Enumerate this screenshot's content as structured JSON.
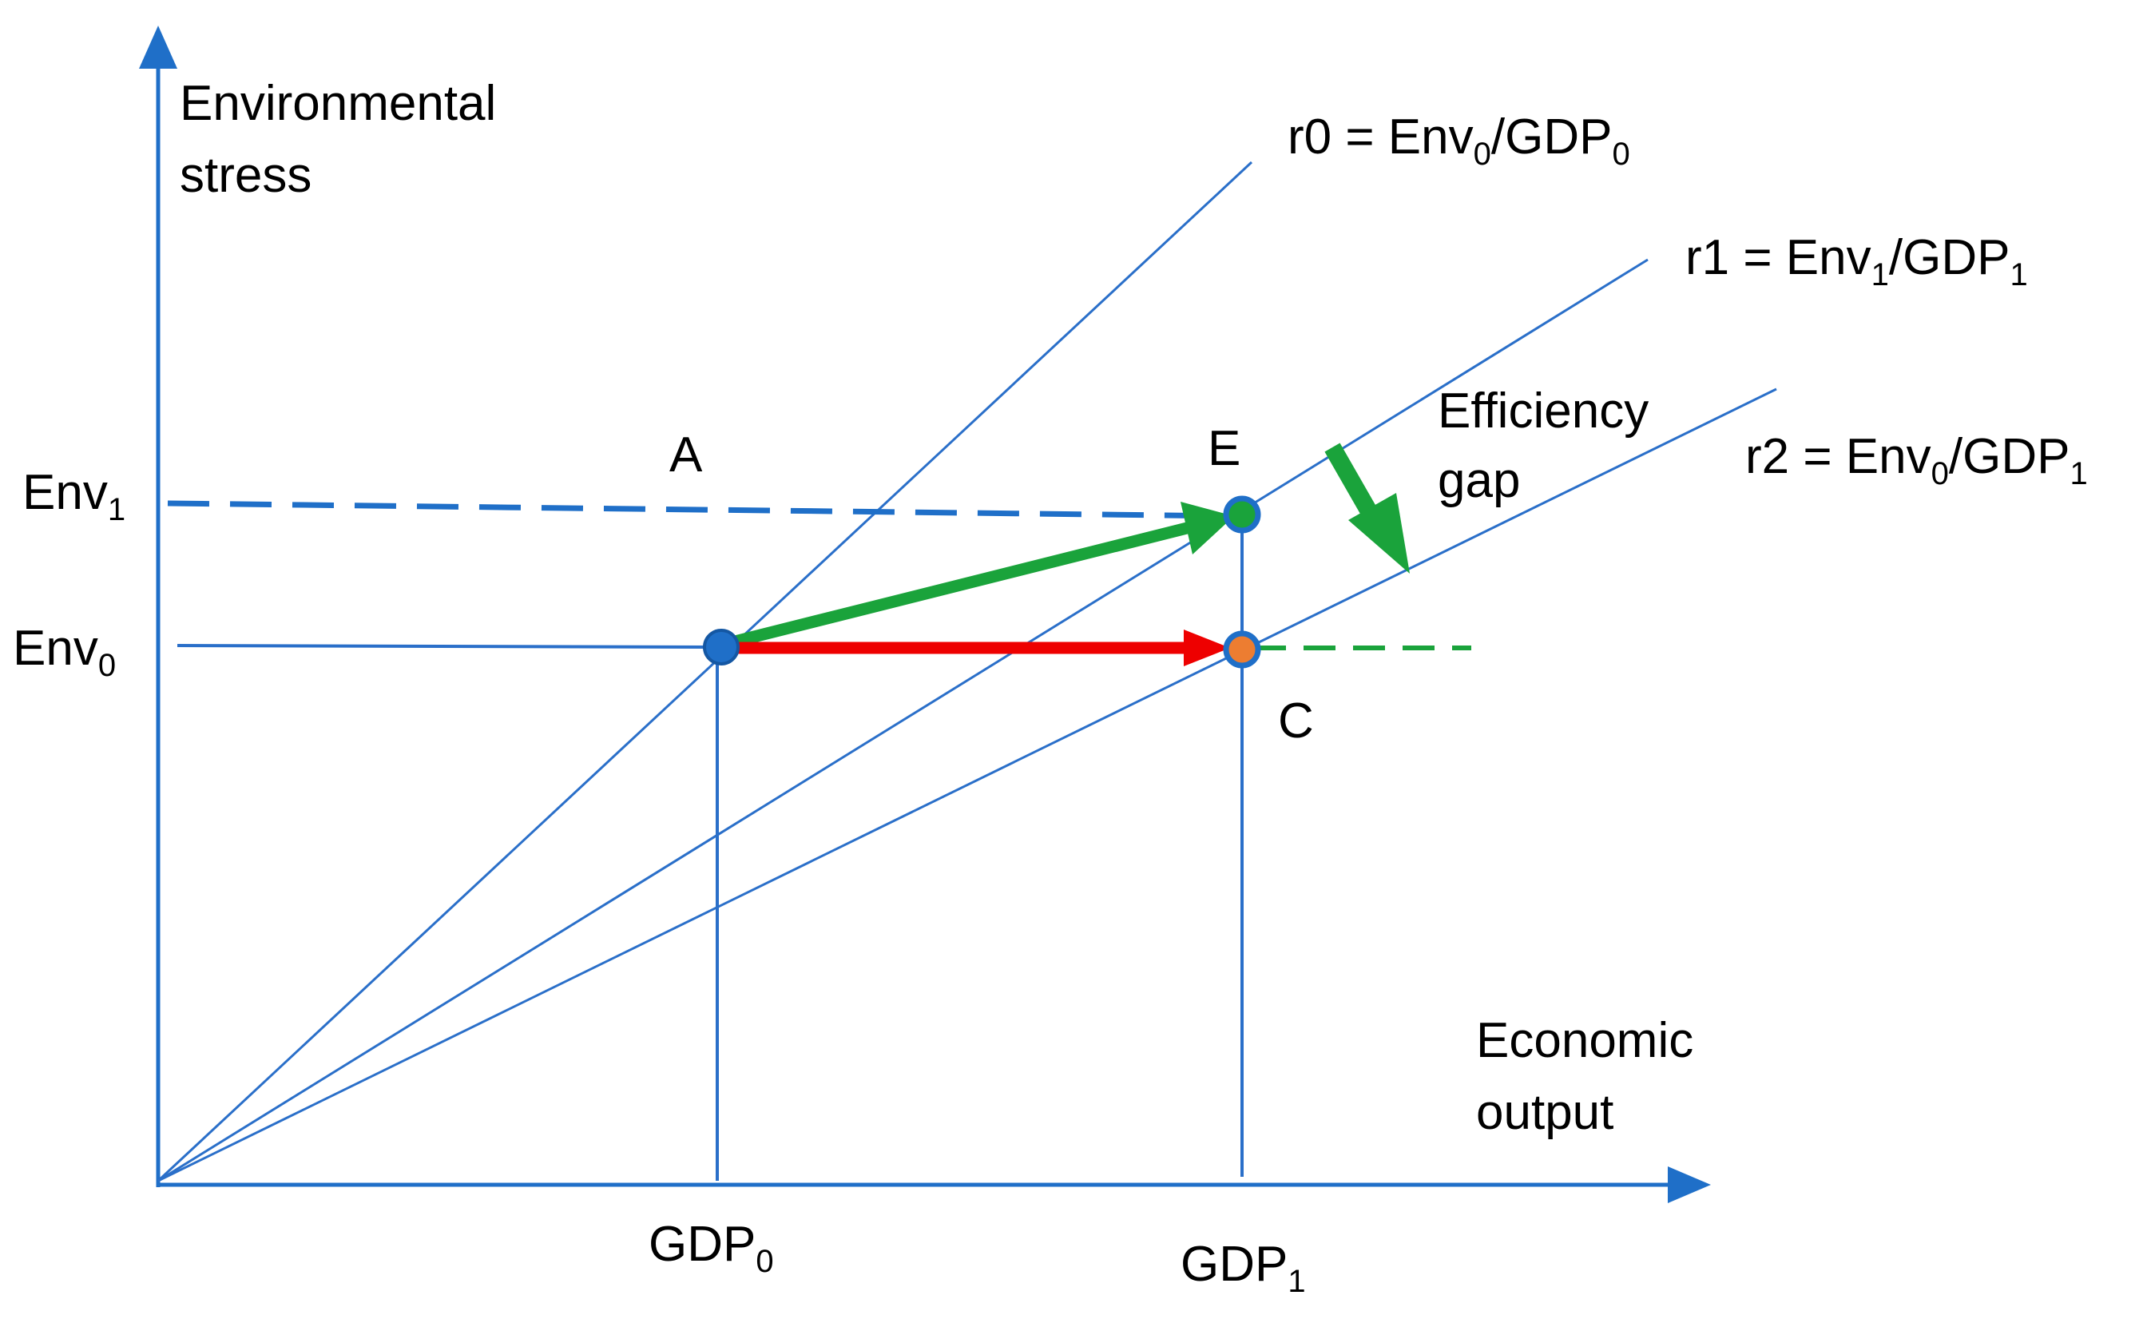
{
  "colors": {
    "axis": "#1f6fc8",
    "ray": "#2a6fc9",
    "env1_dash": "#1f6fc8",
    "green": "#1aa33b",
    "red": "#ee0000",
    "point_blue": "#1f6fc8",
    "point_orange": "#ed7d31",
    "text": "#000000"
  },
  "axes": {
    "y_label_line1": "Environmental",
    "y_label_line2": "stress",
    "x_label_line1": "Economic",
    "x_label_line2": "output"
  },
  "ticks": {
    "env1": {
      "base": "Env",
      "sub": "1"
    },
    "env0": {
      "base": "Env",
      "sub": "0"
    },
    "gdp0": {
      "base": "GDP",
      "sub": "0"
    },
    "gdp1": {
      "base": "GDP",
      "sub": "1"
    }
  },
  "rays": {
    "r0": {
      "prefix": "r0 = Env",
      "sub1": "0",
      "mid": "/GDP",
      "sub2": "0"
    },
    "r1": {
      "prefix": "r1 = Env",
      "sub1": "1",
      "mid": "/GDP",
      "sub2": "1"
    },
    "r2": {
      "prefix": "r2 = Env",
      "sub1": "0",
      "mid": "/GDP",
      "sub2": "1"
    }
  },
  "points": {
    "A": "A",
    "E": "E",
    "C": "C"
  },
  "efficiency_gap": {
    "line1": "Efficiency",
    "line2": "gap"
  }
}
